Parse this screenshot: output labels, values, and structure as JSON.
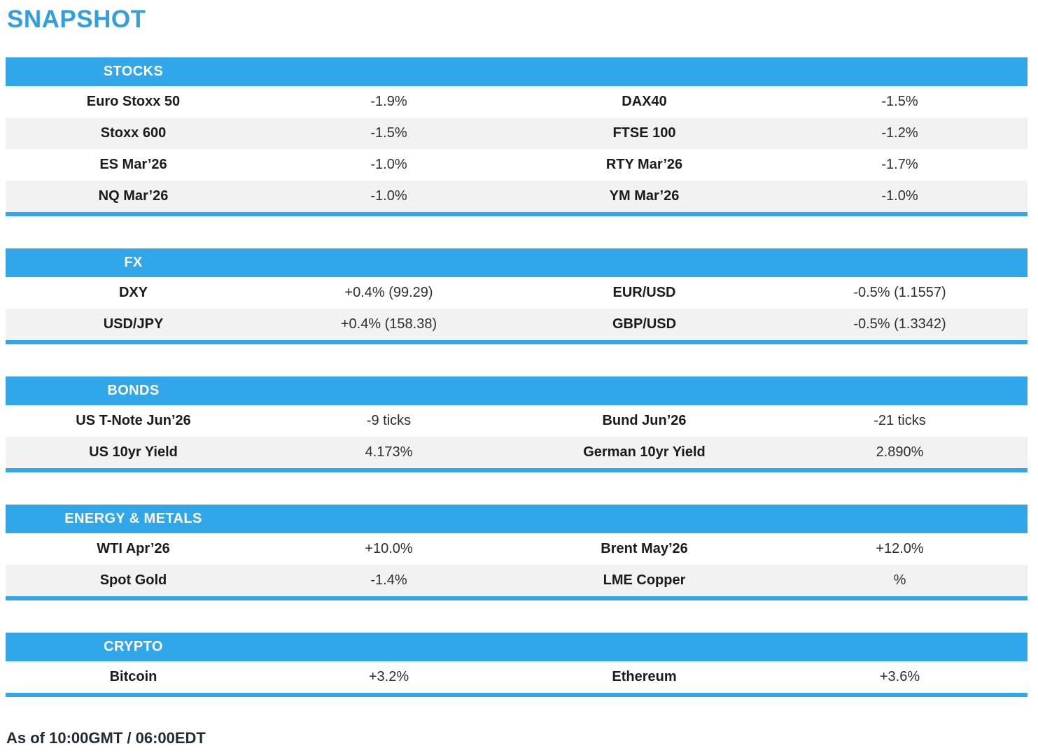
{
  "page": {
    "title": "SNAPSHOT",
    "footer": "As of 10:00GMT / 06:00EDT"
  },
  "colors": {
    "accent_blue": "#31a7ea",
    "title_blue": "#2f9fe0",
    "row_alt_gray": "#f2f2f2",
    "header_text": "#ffffff",
    "label_text": "#1b1b1b",
    "value_text": "#2e2e2e"
  },
  "sections": [
    {
      "title": "STOCKS",
      "rows": [
        {
          "left_label": "Euro Stoxx 50",
          "left_value": "-1.9%",
          "right_label": "DAX40",
          "right_value": "-1.5%"
        },
        {
          "left_label": "Stoxx 600",
          "left_value": "-1.5%",
          "right_label": "FTSE 100",
          "right_value": "-1.2%"
        },
        {
          "left_label": "ES Mar’26",
          "left_value": "-1.0%",
          "right_label": "RTY Mar’26",
          "right_value": "-1.7%"
        },
        {
          "left_label": "NQ Mar’26",
          "left_value": "-1.0%",
          "right_label": "YM Mar’26",
          "right_value": "-1.0%"
        }
      ]
    },
    {
      "title": "FX",
      "rows": [
        {
          "left_label": "DXY",
          "left_value": "+0.4% (99.29)",
          "right_label": "EUR/USD",
          "right_value": "-0.5% (1.1557)"
        },
        {
          "left_label": "USD/JPY",
          "left_value": "+0.4% (158.38)",
          "right_label": "GBP/USD",
          "right_value": "-0.5% (1.3342)"
        }
      ]
    },
    {
      "title": "BONDS",
      "rows": [
        {
          "left_label": "US T-Note Jun’26",
          "left_value": "-9 ticks",
          "right_label": "Bund Jun’26",
          "right_value": "-21 ticks"
        },
        {
          "left_label": "US 10yr Yield",
          "left_value": "4.173%",
          "right_label": "German 10yr Yield",
          "right_value": "2.890%"
        }
      ]
    },
    {
      "title": "ENERGY & METALS",
      "rows": [
        {
          "left_label": "WTI Apr’26",
          "left_value": "+10.0%",
          "right_label": "Brent May’26",
          "right_value": "+12.0%"
        },
        {
          "left_label": "Spot Gold",
          "left_value": "-1.4%",
          "right_label": "LME Copper",
          "right_value": "%"
        }
      ]
    },
    {
      "title": "CRYPTO",
      "rows": [
        {
          "left_label": "Bitcoin",
          "left_value": "+3.2%",
          "right_label": "Ethereum",
          "right_value": "+3.6%"
        }
      ]
    }
  ]
}
